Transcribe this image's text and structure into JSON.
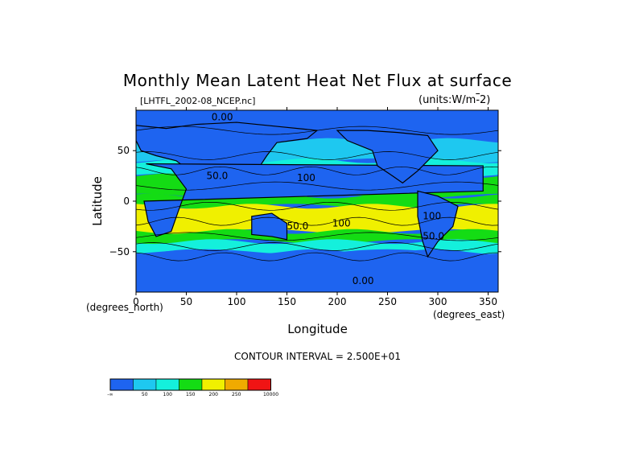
{
  "chart_data": {
    "type": "heatmap",
    "title": "Monthly Mean Latent Heat Net Flux at surface",
    "source_file": "[LHTFL_2002-08_NCEP.nc]",
    "units": "(units:W/m^-2)",
    "xlabel": "Longitude",
    "ylabel": "Latitude",
    "x_units": "(degrees_east)",
    "y_units": "(degrees_north)",
    "xlim": [
      0,
      360
    ],
    "ylim": [
      -90,
      90
    ],
    "x_ticks": [
      "0",
      "50",
      "100",
      "150",
      "200",
      "250",
      "300",
      "350"
    ],
    "y_ticks": [
      "50",
      "0",
      "−50"
    ],
    "x_tick_values": [
      0,
      50,
      100,
      150,
      200,
      250,
      300,
      350
    ],
    "y_tick_values": [
      50,
      0,
      -50
    ],
    "contour_interval_text": "CONTOUR INTERVAL = 2.500E+01",
    "colorbar": {
      "colors": [
        "#1e64f0",
        "#1ec8f0",
        "#14f0dc",
        "#14dc14",
        "#f0f000",
        "#f0aa00",
        "#f01414"
      ],
      "labels": [
        "-∞",
        "50",
        "100",
        "150",
        "200",
        "250",
        "10000"
      ],
      "boundaries": [
        50,
        100,
        150,
        200,
        250
      ]
    },
    "contour_labels": [
      "0.00",
      "50.0",
      "100",
      "50.0",
      "100",
      "0.00",
      "50.0",
      "100"
    ],
    "zonal_bands": [
      {
        "lat_range": [
          60,
          90
        ],
        "class": 0
      },
      {
        "lat_range": [
          40,
          60
        ],
        "class": 1
      },
      {
        "lat_range": [
          25,
          40
        ],
        "class": 2
      },
      {
        "lat_range": [
          5,
          25
        ],
        "class": 3
      },
      {
        "lat_range": [
          -5,
          5
        ],
        "class": 3
      },
      {
        "lat_range": [
          -30,
          -5
        ],
        "class": 4
      },
      {
        "lat_range": [
          -40,
          -30
        ],
        "class": 3
      },
      {
        "lat_range": [
          -50,
          -40
        ],
        "class": 2
      },
      {
        "lat_range": [
          -90,
          -50
        ],
        "class": 0
      }
    ]
  }
}
